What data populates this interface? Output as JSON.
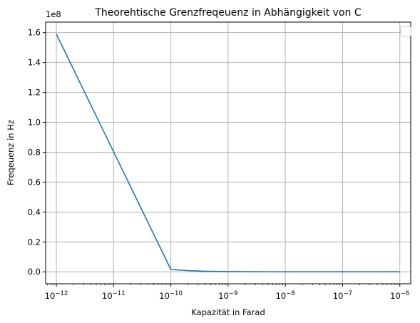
{
  "chart_data": {
    "type": "line",
    "title": "Theorehtische Grenzfreqeuenz in Abhängigkeit von C",
    "xlabel": "Kapazität in Farad",
    "ylabel": "Freqeuenz in Hz",
    "x_scale": "log",
    "xlim": [
      6.5e-13,
      1.55e-06
    ],
    "ylim": [
      -8000000,
      167000000
    ],
    "y_multiplier_label": "1e8",
    "x_ticks": [
      {
        "value": 1e-12,
        "base": "10",
        "exp": "−12"
      },
      {
        "value": 1e-11,
        "base": "10",
        "exp": "−11"
      },
      {
        "value": 1e-10,
        "base": "10",
        "exp": "−10"
      },
      {
        "value": 1e-09,
        "base": "10",
        "exp": "−9"
      },
      {
        "value": 1e-08,
        "base": "10",
        "exp": "−8"
      },
      {
        "value": 1e-07,
        "base": "10",
        "exp": "−7"
      },
      {
        "value": 1e-06,
        "base": "10",
        "exp": "−6"
      }
    ],
    "y_ticks": [
      {
        "value": 0,
        "label": "0.0"
      },
      {
        "value": 20000000,
        "label": "0.2"
      },
      {
        "value": 40000000,
        "label": "0.4"
      },
      {
        "value": 60000000,
        "label": "0.6"
      },
      {
        "value": 80000000,
        "label": "0.8"
      },
      {
        "value": 100000000,
        "label": "1.0"
      },
      {
        "value": 120000000,
        "label": "1.2"
      },
      {
        "value": 140000000,
        "label": "1.4"
      },
      {
        "value": 160000000,
        "label": "1.6"
      }
    ],
    "grid": true,
    "legend": "top-right (empty)",
    "series": [
      {
        "color": "#1f77b4",
        "x": [
          1e-12,
          1e-10,
          2e-10,
          3e-10,
          4e-10,
          5e-10,
          6e-10,
          7e-10,
          8e-10,
          9e-10,
          1e-09,
          1e-08,
          1e-07,
          1e-06
        ],
        "y": [
          159000000,
          1590000,
          796000,
          531000,
          398000,
          318000,
          265000,
          227000,
          199000,
          177000,
          159000,
          15900,
          1590,
          159
        ]
      }
    ]
  }
}
